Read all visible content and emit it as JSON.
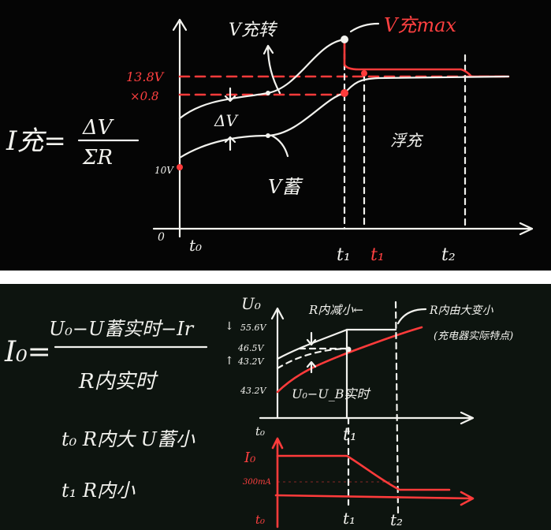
{
  "top_panel": {
    "formula": {
      "lhs": "I充=",
      "numerator": "ΔV",
      "denominator": "ΣR"
    },
    "y_ticks": [
      "13.8V",
      "×0.8",
      "10V"
    ],
    "x_labels": {
      "origin": "0",
      "t0": "t₀",
      "t1": "t₁",
      "t1_red": "t₁",
      "t2": "t₂"
    },
    "annotations": {
      "v_charger_var": "V充转",
      "v_charger_max": "V充max",
      "delta_v": "ΔV",
      "v_battery": "V蓄",
      "float": "浮充"
    },
    "colors": {
      "board": "#050505",
      "chalk": "#f2f2ee",
      "red_chalk": "#ff3b3b"
    }
  },
  "bottom_panel": {
    "formula": {
      "lhs": "I₀=",
      "numerator": "U₀−U蓄实时−Ir",
      "denominator": "R内实时"
    },
    "notes": [
      "t₀ R内大 U蓄小",
      "t₁ R内小"
    ],
    "upper_chart": {
      "y_label": "U₀",
      "y_ticks": [
        "55.6V",
        "46.5V",
        "43.2V",
        "43.2V"
      ],
      "arrows": [
        "↓",
        "↑"
      ],
      "x_labels": {
        "t0": "t₀",
        "t1": "t₁"
      },
      "annotations": {
        "r_decreasing": "R内减小←",
        "r_note": "R内由大变小",
        "r_note2": "(充电器实际特点)",
        "diff": "U₀−U_B实时"
      }
    },
    "lower_chart": {
      "y_label": "I₀",
      "y_ticks": [
        "300mA"
      ],
      "x_labels": {
        "t0": "t₀",
        "t1": "t₁",
        "t2": "t₂"
      }
    },
    "colors": {
      "board": "#0d140f"
    }
  }
}
